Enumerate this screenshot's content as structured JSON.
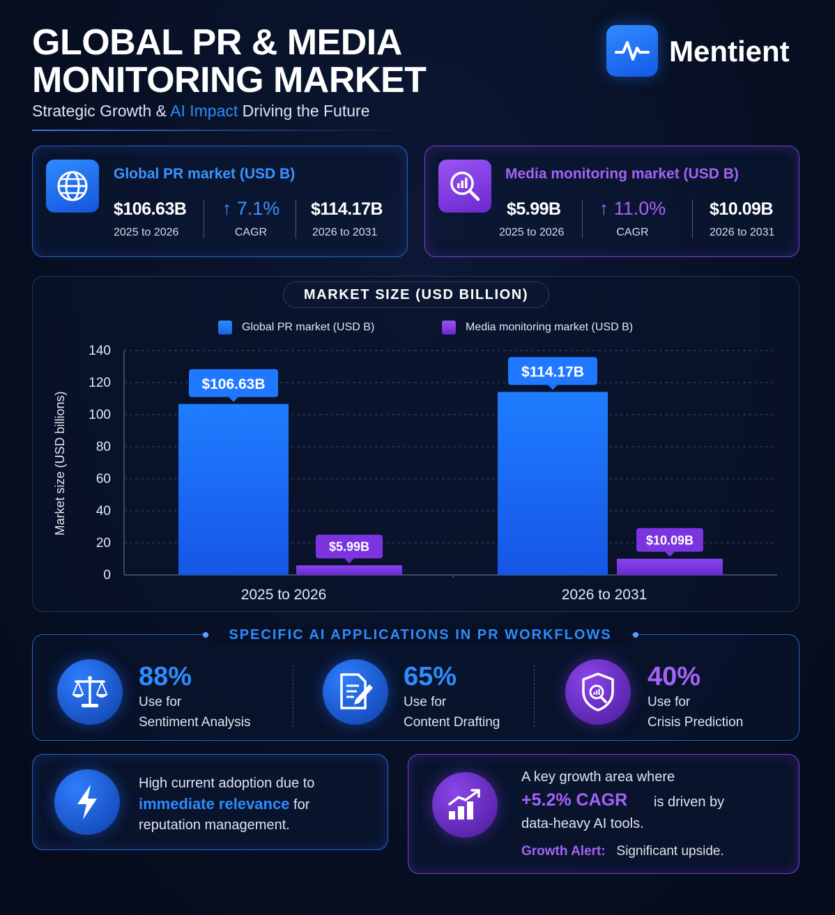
{
  "header": {
    "title_line1": "GLOBAL PR & MEDIA",
    "title_line2": "MONITORING MARKET",
    "subtitle_pre": "Strategic Growth & ",
    "subtitle_hl": "AI Impact",
    "subtitle_post": " Driving the Future",
    "brand_name": "Mentient",
    "brand_icon": "pulse-wave-icon"
  },
  "pr_card": {
    "title": "Global PR market (USD B)",
    "icon": "globe-icon",
    "stat1_value": "$106.63B",
    "stat1_label": "2025 to 2026",
    "cagr_arrow": "↑",
    "cagr_value": "7.1%",
    "cagr_label": "CAGR",
    "stat2_value": "$114.17B",
    "stat2_label": "2026 to 2031"
  },
  "mm_card": {
    "title": "Media monitoring market (USD B)",
    "icon": "magnifier-chart-icon",
    "stat1_value": "$5.99B",
    "stat1_label": "2025 to 2026",
    "cagr_arrow": "↑",
    "cagr_value": "11.0%",
    "cagr_label": "CAGR",
    "stat2_value": "$10.09B",
    "stat2_label": "2026 to 2031"
  },
  "chart_data": {
    "type": "bar",
    "title": "MARKET SIZE (USD BILLION)",
    "ylabel": "Market size (USD billions)",
    "xlabel": "",
    "categories": [
      "2025 to 2026",
      "2026 to 2031"
    ],
    "series": [
      {
        "name": "Global PR market (USD B)",
        "values": [
          106.63,
          114.17
        ],
        "labels": [
          "$106.63B",
          "$114.17B"
        ],
        "color": "#1f78ff"
      },
      {
        "name": "Media monitoring market (USD B)",
        "values": [
          5.99,
          10.09
        ],
        "labels": [
          "$5.99B",
          "$10.09B"
        ],
        "color": "#7b34e0"
      }
    ],
    "ylim": [
      0,
      140
    ],
    "yticks": [
      0,
      20,
      40,
      60,
      80,
      100,
      120,
      140
    ],
    "grid": true,
    "legend_position": "top"
  },
  "ai_section": {
    "heading": "SPECIFIC AI APPLICATIONS IN PR WORKFLOWS",
    "items": [
      {
        "pct": "88%",
        "line1": "Use for",
        "line2": "Sentiment Analysis",
        "icon": "scales-icon",
        "color": "#2f8cff"
      },
      {
        "pct": "65%",
        "line1": "Use for",
        "line2": "Content Drafting",
        "icon": "document-pen-icon",
        "color": "#2f8cff"
      },
      {
        "pct": "40%",
        "line1": "Use for",
        "line2": "Crisis Prediction",
        "icon": "shield-search-icon",
        "color": "#a463f7"
      }
    ]
  },
  "bottom_left": {
    "icon": "lightning-icon",
    "line1": "High current adoption due to",
    "highlight": "immediate relevance",
    "after_highlight": " for",
    "line3": "reputation management."
  },
  "bottom_right": {
    "icon": "growth-chart-icon",
    "line1": "A key growth area where",
    "cagr": "+5.2% CAGR",
    "after_cagr": "is driven by",
    "line3": "data-heavy AI tools.",
    "alert_label": "Growth Alert:",
    "alert_text": "Significant upside."
  },
  "colors": {
    "accent_blue": "#2f8cff",
    "accent_purple": "#a463f7",
    "background": "#071024"
  }
}
